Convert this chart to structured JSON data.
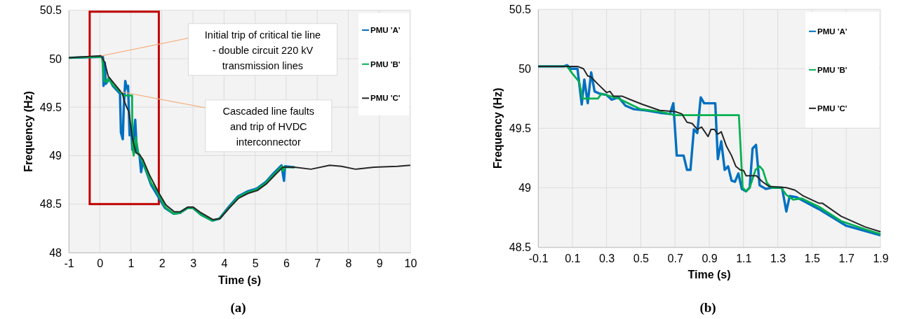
{
  "chart_data": [
    {
      "type": "line",
      "title": "(a)",
      "xlabel": "Time (s)",
      "ylabel": "Frequency (Hz)",
      "xlim": [
        -1,
        10
      ],
      "ylim": [
        48,
        50.5
      ],
      "xticks": [
        -1,
        0,
        1,
        2,
        3,
        4,
        5,
        6,
        7,
        8,
        9,
        10
      ],
      "yticks": [
        48,
        48.5,
        49,
        49.5,
        50,
        50.5
      ],
      "grid": true,
      "legend": "top right",
      "marker": "none",
      "line_style": "solid",
      "annotations": [
        {
          "text": "Initial trip of critical tie line\n- double circuit 220 kV\ntransmission lines",
          "x": 0.05,
          "y": 50.03
        },
        {
          "text": "Cascaded line faults\nand trip of HVDC\ninterconnector",
          "x": 0.68,
          "y": 49.66
        }
      ],
      "series": [
        {
          "name": "PMU 'A'",
          "color": "#0070c0",
          "x": [
            -1,
            0,
            0.1,
            0.12,
            0.16,
            0.19,
            0.31,
            0.42,
            0.65,
            0.68,
            0.74,
            0.77,
            0.82,
            0.87,
            0.91,
            0.96,
            1,
            1.05,
            1.09,
            1.14,
            1.19,
            1.28,
            1.33,
            1.38,
            1.65,
            1.8,
            2.1,
            2.38,
            2.58,
            2.82,
            3,
            3.26,
            3.62,
            3.85,
            4.15,
            4.45,
            4.75,
            5.05,
            5.35,
            5.6,
            5.85,
            5.93,
            5.96,
            6.27
          ],
          "values": [
            50.01,
            50.02,
            50.02,
            49.72,
            49.96,
            49.74,
            49.79,
            49.72,
            49.64,
            49.24,
            49.17,
            49.49,
            49.77,
            49.69,
            49.72,
            49.21,
            49.31,
            49.06,
            49.19,
            49.37,
            49.05,
            49,
            48.83,
            48.94,
            48.7,
            48.62,
            48.46,
            48.4,
            48.41,
            48.46,
            48.46,
            48.39,
            48.33,
            48.35,
            48.47,
            48.58,
            48.63,
            48.66,
            48.73,
            48.82,
            48.9,
            48.74,
            48.89,
            48.88
          ]
        },
        {
          "name": "PMU 'B'",
          "color": "#00b050",
          "x": [
            -1,
            0,
            0.07,
            0.14,
            0.23,
            0.27,
            0.42,
            0.65,
            0.77,
            1.04,
            1.05,
            1.09,
            1.16,
            1.24,
            1.35,
            1.65,
            1.8,
            2.1,
            2.38,
            2.58,
            2.82,
            3,
            3.26,
            3.62,
            3.85,
            4.15,
            4.45,
            4.75,
            5.05,
            5.35,
            5.65,
            5.87,
            5.9,
            5.95,
            6.27
          ],
          "values": [
            50.01,
            50.02,
            50.02,
            49.77,
            49.76,
            49.8,
            49.73,
            49.66,
            49.62,
            49.62,
            49.1,
            49,
            49.19,
            49.03,
            48.96,
            48.72,
            48.65,
            48.47,
            48.4,
            48.41,
            48.46,
            48.46,
            48.39,
            48.33,
            48.35,
            48.46,
            48.57,
            48.62,
            48.65,
            48.72,
            48.82,
            48.89,
            48.84,
            48.88,
            48.88
          ]
        },
        {
          "name": "PMU 'C'",
          "color": "#262626",
          "x": [
            -1,
            0.05,
            0.16,
            0.27,
            0.42,
            0.6,
            0.73,
            0.79,
            0.88,
            0.94,
            1,
            1.05,
            1.16,
            1.28,
            1.39,
            1.6,
            1.91,
            2.13,
            2.4,
            2.58,
            2.84,
            3,
            3.26,
            3.64,
            3.87,
            4.17,
            4.47,
            4.77,
            5.07,
            5.37,
            5.67,
            5.89,
            6.27,
            6.8,
            7.4,
            7.78,
            8.23,
            8.83,
            9.58,
            10
          ],
          "values": [
            50.01,
            50.03,
            49.96,
            49.82,
            49.76,
            49.69,
            49.64,
            49.56,
            49.49,
            49.45,
            49.3,
            49.18,
            49.03,
            49.01,
            48.96,
            48.8,
            48.61,
            48.49,
            48.42,
            48.42,
            48.47,
            48.47,
            48.41,
            48.34,
            48.35,
            48.46,
            48.56,
            48.61,
            48.64,
            48.71,
            48.81,
            48.88,
            48.88,
            48.86,
            48.9,
            48.89,
            48.86,
            48.88,
            48.89,
            48.9
          ]
        }
      ]
    },
    {
      "type": "line",
      "title": "(b)",
      "xlabel": "Time (s)",
      "ylabel": "Frequency (Hz)",
      "xlim": [
        -0.1,
        1.9
      ],
      "ylim": [
        48.5,
        50.5
      ],
      "xticks": [
        -0.1,
        0.1,
        0.3,
        0.5,
        0.7,
        0.9,
        1.1,
        1.3,
        1.5,
        1.7,
        1.9
      ],
      "yticks": [
        48.5,
        49,
        49.5,
        50,
        50.5
      ],
      "grid": true,
      "legend": "top right",
      "marker": "none",
      "line_style": "solid",
      "series": [
        {
          "name": "PMU 'A'",
          "color": "#0070c0",
          "x": [
            -0.1,
            0.05,
            0.07,
            0.09,
            0.13,
            0.155,
            0.17,
            0.19,
            0.21,
            0.23,
            0.26,
            0.3,
            0.33,
            0.37,
            0.41,
            0.46,
            0.53,
            0.61,
            0.67,
            0.69,
            0.71,
            0.75,
            0.77,
            0.79,
            0.81,
            0.83,
            0.85,
            0.87,
            0.935,
            0.95,
            0.97,
            0.99,
            1.01,
            1.03,
            1.05,
            1.07,
            1.09,
            1.115,
            1.136,
            1.153,
            1.173,
            1.194,
            1.23,
            1.264,
            1.325,
            1.35,
            1.37,
            1.41,
            1.54,
            1.7,
            1.9
          ],
          "values": [
            50.02,
            50.02,
            50.03,
            50,
            50,
            49.7,
            49.91,
            49.71,
            49.97,
            49.81,
            49.79,
            49.78,
            49.74,
            49.76,
            49.69,
            49.66,
            49.65,
            49.63,
            49.62,
            49.71,
            49.27,
            49.27,
            49.15,
            49.15,
            49.49,
            49.46,
            49.76,
            49.71,
            49.71,
            49.24,
            49.39,
            49.15,
            49.18,
            49.06,
            49.05,
            49.12,
            48.99,
            48.97,
            49,
            49.33,
            49.36,
            49.02,
            48.99,
            49,
            49,
            48.8,
            48.93,
            48.92,
            48.82,
            48.68,
            48.6
          ]
        },
        {
          "name": "PMU 'B'",
          "color": "#00b050",
          "x": [
            -0.1,
            0.07,
            0.1,
            0.14,
            0.16,
            0.25,
            0.27,
            0.37,
            0.44,
            0.5,
            0.61,
            0.7,
            1.073,
            1.095,
            1.115,
            1.136,
            1.17,
            1.194,
            1.213,
            1.237,
            1.264,
            1.32,
            1.35,
            1.39,
            1.44,
            1.54,
            1.67,
            1.81,
            1.9
          ],
          "values": [
            50.02,
            50.02,
            49.96,
            49.89,
            49.75,
            49.75,
            49.79,
            49.75,
            49.7,
            49.66,
            49.64,
            49.61,
            49.61,
            49,
            48.97,
            49,
            49.15,
            49.18,
            49.15,
            49.04,
            49,
            49,
            48.94,
            48.9,
            48.91,
            48.84,
            48.72,
            48.65,
            48.61
          ]
        },
        {
          "name": "PMU 'C'",
          "color": "#262626",
          "x": [
            -0.1,
            0.13,
            0.165,
            0.19,
            0.21,
            0.25,
            0.3,
            0.32,
            0.34,
            0.39,
            0.44,
            0.51,
            0.61,
            0.7,
            0.74,
            0.77,
            0.8,
            0.83,
            0.855,
            0.893,
            0.91,
            0.93,
            0.95,
            0.97,
            1,
            1.03,
            1.055,
            1.08,
            1.1,
            1.115,
            1.175,
            1.21,
            1.25,
            1.35,
            1.4,
            1.45,
            1.54,
            1.56,
            1.67,
            1.81,
            1.9
          ],
          "values": [
            50.02,
            50.02,
            50,
            49.94,
            49.93,
            49.87,
            49.8,
            49.81,
            49.77,
            49.77,
            49.74,
            49.7,
            49.65,
            49.64,
            49.62,
            49.55,
            49.54,
            49.49,
            49.51,
            49.43,
            49.49,
            49.49,
            49.45,
            49.47,
            49.35,
            49.27,
            49.18,
            49.15,
            49.145,
            49.1,
            49.1,
            49.05,
            49.01,
            49,
            48.98,
            48.93,
            48.87,
            48.87,
            48.76,
            48.67,
            48.63
          ]
        }
      ]
    }
  ]
}
